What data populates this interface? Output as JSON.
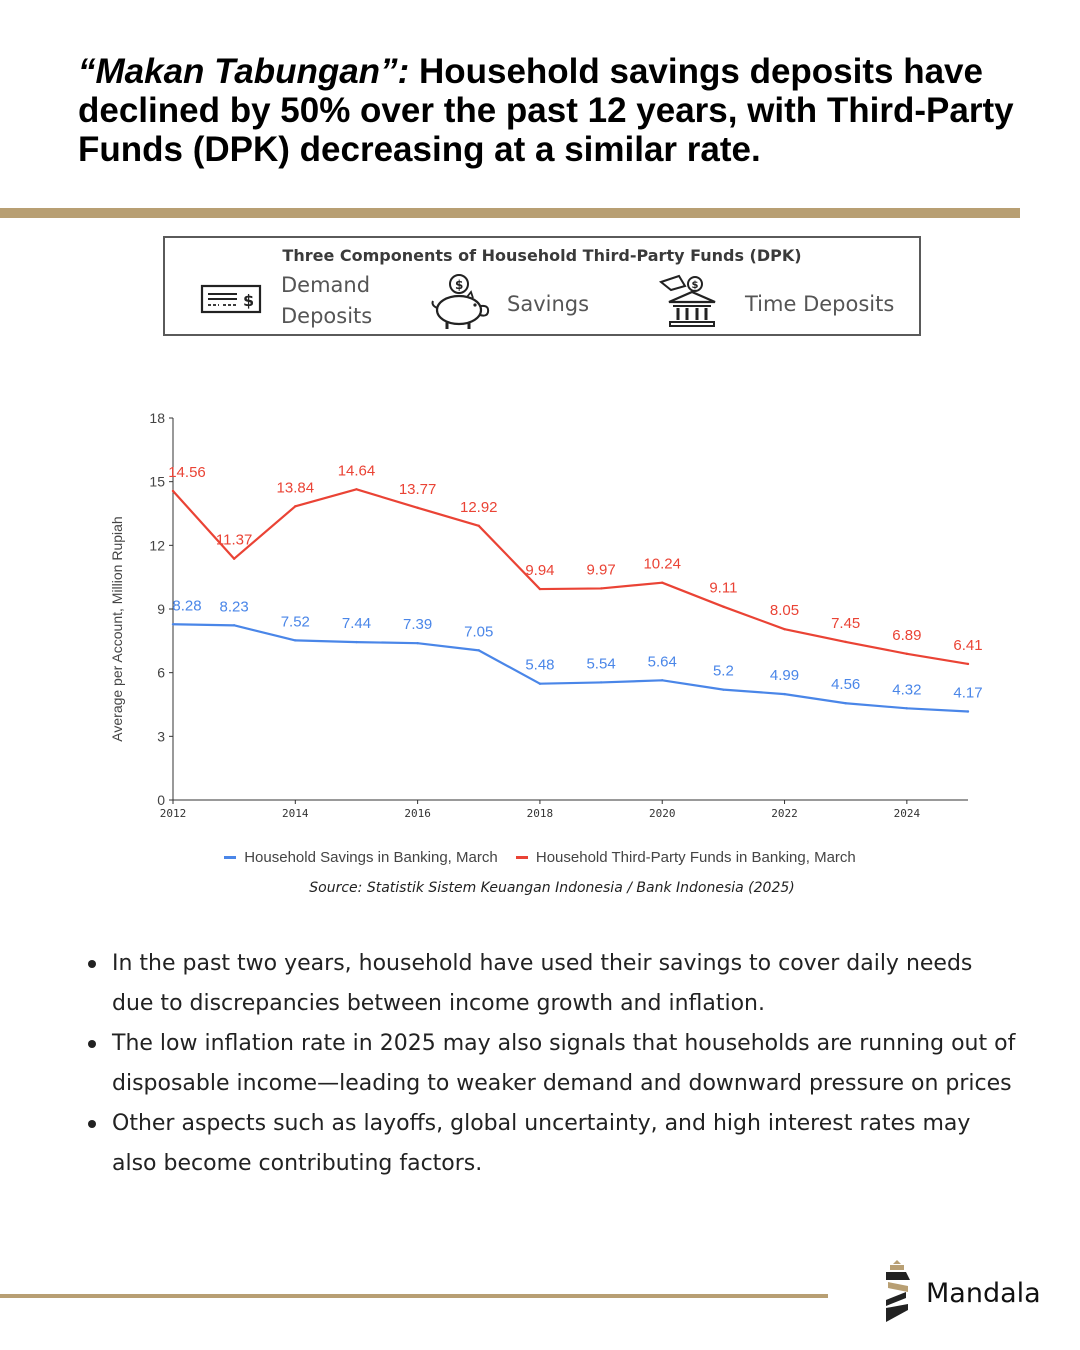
{
  "header": {
    "title_italic": "“Makan Tabungan”:",
    "title_rest": " Household savings deposits have declined by 50% over the past 12 years, with Third-Party Funds (DPK) decreasing at a similar rate."
  },
  "components": {
    "title": "Three Components of Household Third-Party Funds (DPK)",
    "items": [
      {
        "label_line1": "Demand",
        "label_line2": "Deposits",
        "icon": "cheque-icon"
      },
      {
        "label_line1": "Savings",
        "label_line2": "",
        "icon": "piggy-bank-icon"
      },
      {
        "label_line1": "Time Deposits",
        "label_line2": "",
        "icon": "bank-building-icon"
      }
    ]
  },
  "chart_data": {
    "type": "line",
    "title": "",
    "xlabel": "",
    "ylabel": "Average per Account, Million Rupiah",
    "x": [
      2012,
      2013,
      2014,
      2015,
      2016,
      2017,
      2018,
      2019,
      2020,
      2021,
      2022,
      2023,
      2024,
      2025
    ],
    "x_tick_labels": [
      "2012",
      "2014",
      "2016",
      "2018",
      "2020",
      "2022",
      "2024"
    ],
    "y_ticks": [
      "0",
      "3",
      "6",
      "9",
      "12",
      "15",
      "18"
    ],
    "ylim": [
      0,
      18
    ],
    "grid": false,
    "legend_position": "bottom",
    "series": [
      {
        "name": "Household Savings in Banking, March",
        "color": "#4a86e8",
        "values": [
          8.28,
          8.23,
          7.52,
          7.44,
          7.39,
          7.05,
          5.48,
          5.54,
          5.64,
          5.2,
          4.99,
          4.56,
          4.32,
          4.17
        ],
        "labels": [
          "8.28",
          "8.23",
          "7.52",
          "7.44",
          "7.39",
          "7.05",
          "5.48",
          "5.54",
          "5.64",
          "5.2",
          "4.99",
          "4.56",
          "4.32",
          "4.17"
        ]
      },
      {
        "name": "Household Third-Party Funds in Banking, March",
        "color": "#ea4335",
        "values": [
          14.56,
          11.37,
          13.84,
          14.64,
          13.77,
          12.92,
          9.94,
          9.97,
          10.24,
          9.11,
          8.05,
          7.45,
          6.89,
          6.41
        ],
        "labels": [
          "14.56",
          "11.37",
          "13.84",
          "14.64",
          "13.77",
          "12.92",
          "9.94",
          "9.97",
          "10.24",
          "9.11",
          "8.05",
          "7.45",
          "6.89",
          "6.41"
        ]
      }
    ]
  },
  "source": "Source: Statistik Sistem Keuangan Indonesia / Bank Indonesia (2025)",
  "bullets": [
    "In the past two years, household have used their savings to cover daily needs due to discrepancies between income growth and inflation.",
    "The low inflation rate in 2025 may also signals that households are running out of disposable income—leading to weaker demand and downward pressure on prices",
    "Other aspects such as layoffs, global uncertainty, and high interest rates may also become contributing factors."
  ],
  "brand": {
    "name": "Mandala",
    "icon": "mandala-logo-icon"
  },
  "colors": {
    "accent_rule": "#b89f73",
    "blue_series": "#4a86e8",
    "red_series": "#ea4335"
  }
}
